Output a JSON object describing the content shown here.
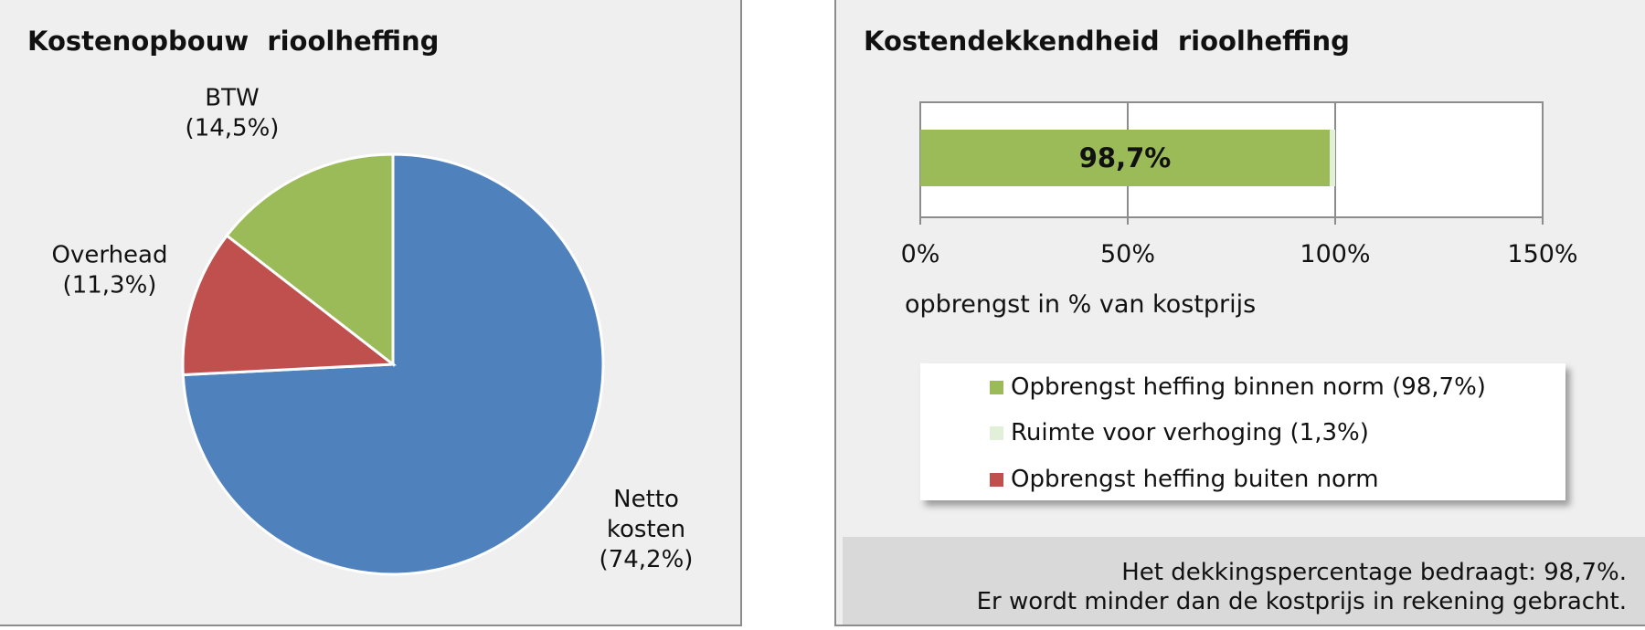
{
  "chart_data": [
    {
      "type": "pie",
      "title": "Kostenopbouw  rioolheffing",
      "slices": [
        {
          "name": "Netto kosten",
          "label_lines": [
            "Netto",
            "kosten",
            "(74,2%)"
          ],
          "value": 74.2,
          "color": "#4f81bd"
        },
        {
          "name": "Overhead",
          "label_lines": [
            "Overhead",
            "(11,3%)"
          ],
          "value": 11.3,
          "color": "#c0504d"
        },
        {
          "name": "BTW",
          "label_lines": [
            "BTW",
            "(14,5%)"
          ],
          "value": 14.5,
          "color": "#9bbb59"
        }
      ]
    },
    {
      "type": "bar",
      "orientation": "horizontal",
      "stacked": true,
      "title": "Kostendekkendheid  rioolheffing",
      "xlabel": "opbrengst in % van kostprijs",
      "xlim": [
        0,
        150
      ],
      "xticks": [
        0,
        50,
        100,
        150
      ],
      "xtick_labels": [
        "0%",
        "50%",
        "100%",
        "150%"
      ],
      "grid": true,
      "series": [
        {
          "name": "Opbrengst heffing binnen norm (98,7%)",
          "value": 98.7,
          "color": "#9bbb59",
          "data_label": "98,7%"
        },
        {
          "name": "Ruimte voor verhoging (1,3%)",
          "value": 1.3,
          "color": "#e2efd9"
        },
        {
          "name": "Opbrengst heffing buiten norm",
          "value": 0,
          "color": "#c0504d"
        }
      ],
      "legend_position": "bottom"
    }
  ],
  "note": {
    "line1": "Het dekkingspercentage bedraagt: 98,7%.",
    "line2": "Er wordt minder dan de kostprijs in rekening gebracht."
  }
}
